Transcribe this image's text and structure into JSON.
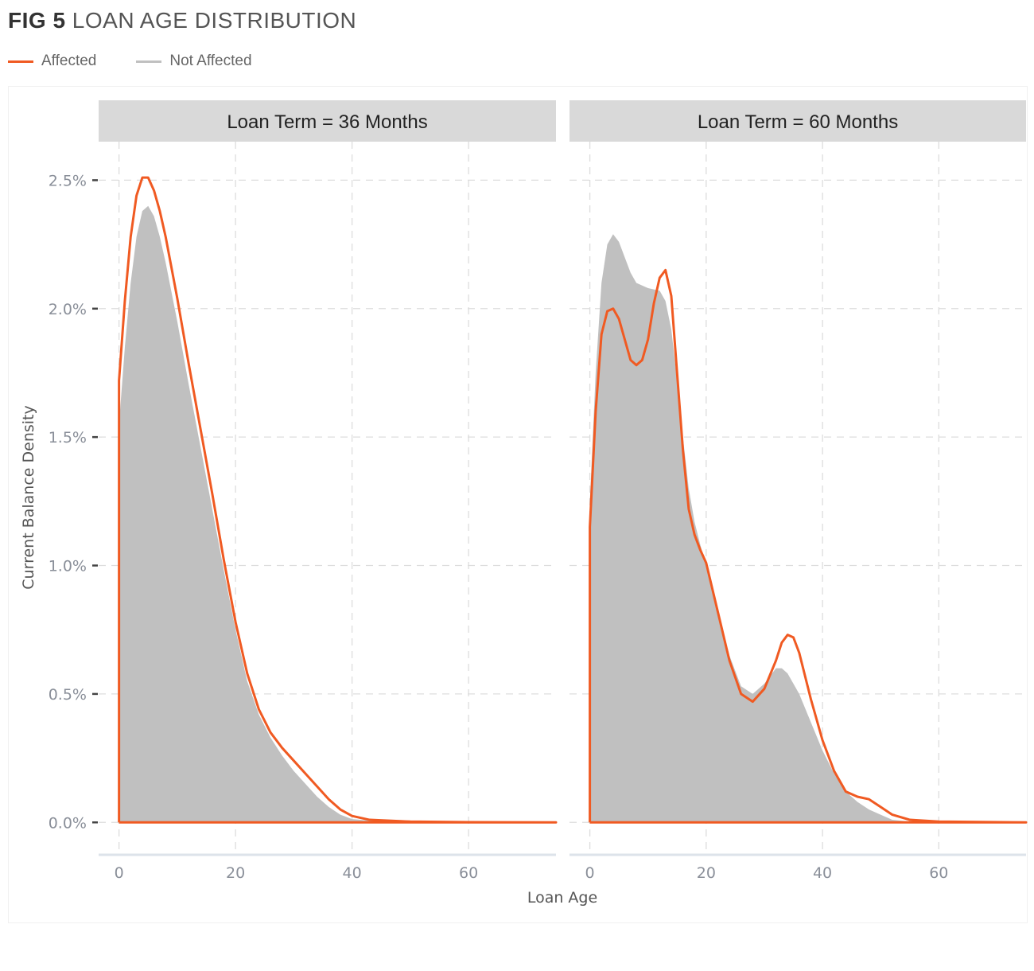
{
  "figure": {
    "label": "FIG 5",
    "title": "LOAN AGE DISTRIBUTION"
  },
  "legend": [
    {
      "name": "Affected",
      "color": "#f05a22"
    },
    {
      "name": "Not Affected",
      "color": "#c0c0c0"
    }
  ],
  "chart_data": {
    "type": "area",
    "xlabel": "Loan Age",
    "ylabel": "Current Balance Density",
    "xlim": [
      -3.5,
      75
    ],
    "ylim": [
      -0.0012,
      0.0265
    ],
    "x_ticks": [
      0,
      20,
      40,
      60
    ],
    "x_tick_labels": [
      "0",
      "20",
      "40",
      "60"
    ],
    "y_ticks": [
      0,
      0.005,
      0.01,
      0.015,
      0.02,
      0.025
    ],
    "y_tick_labels": [
      "0.0%",
      "0.5%",
      "1.0%",
      "1.5%",
      "2.0%",
      "2.5%"
    ],
    "grid": true,
    "legend_position": "top-left",
    "panels": [
      {
        "strip": "Loan Term = 36 Months",
        "series": [
          {
            "name": "Not Affected",
            "style": "filled-area",
            "color": "#c0c0c0",
            "points": [
              [
                0,
                0.0155
              ],
              [
                1,
                0.0185
              ],
              [
                2,
                0.021
              ],
              [
                3,
                0.0228
              ],
              [
                4,
                0.0238
              ],
              [
                5,
                0.024
              ],
              [
                6,
                0.0236
              ],
              [
                7,
                0.0228
              ],
              [
                8,
                0.0218
              ],
              [
                10,
                0.0195
              ],
              [
                12,
                0.017
              ],
              [
                14,
                0.0146
              ],
              [
                16,
                0.0122
              ],
              [
                18,
                0.0098
              ],
              [
                20,
                0.0075
              ],
              [
                22,
                0.0055
              ],
              [
                24,
                0.0042
              ],
              [
                26,
                0.0033
              ],
              [
                28,
                0.0026
              ],
              [
                30,
                0.002
              ],
              [
                32,
                0.0015
              ],
              [
                34,
                0.001
              ],
              [
                36,
                0.0006
              ],
              [
                38,
                0.0003
              ],
              [
                40,
                0.00013
              ],
              [
                45,
                3e-05
              ],
              [
                50,
                1e-05
              ],
              [
                60,
                0
              ],
              [
                75,
                0
              ]
            ]
          },
          {
            "name": "Affected",
            "style": "line",
            "color": "#f05a22",
            "points": [
              [
                0,
                0.0172
              ],
              [
                1,
                0.0203
              ],
              [
                2,
                0.0228
              ],
              [
                3,
                0.0244
              ],
              [
                4,
                0.0251
              ],
              [
                5,
                0.0251
              ],
              [
                6,
                0.0246
              ],
              [
                7,
                0.0238
              ],
              [
                8,
                0.0228
              ],
              [
                10,
                0.0204
              ],
              [
                12,
                0.0178
              ],
              [
                14,
                0.0153
              ],
              [
                16,
                0.0128
              ],
              [
                18,
                0.0102
              ],
              [
                20,
                0.0078
              ],
              [
                22,
                0.0058
              ],
              [
                24,
                0.0044
              ],
              [
                26,
                0.0035
              ],
              [
                28,
                0.0029
              ],
              [
                30,
                0.0024
              ],
              [
                32,
                0.0019
              ],
              [
                34,
                0.0014
              ],
              [
                36,
                0.0009
              ],
              [
                38,
                0.0005
              ],
              [
                40,
                0.00025
              ],
              [
                43,
                0.0001
              ],
              [
                50,
                3e-05
              ],
              [
                60,
                1e-05
              ],
              [
                75,
                0
              ]
            ]
          }
        ]
      },
      {
        "strip": "Loan Term = 60 Months",
        "series": [
          {
            "name": "Not Affected",
            "style": "filled-area",
            "color": "#c0c0c0",
            "points": [
              [
                0,
                0.0125
              ],
              [
                1,
                0.0175
              ],
              [
                2,
                0.021
              ],
              [
                3,
                0.0225
              ],
              [
                4,
                0.0229
              ],
              [
                5,
                0.0226
              ],
              [
                6,
                0.022
              ],
              [
                7,
                0.0214
              ],
              [
                8,
                0.021
              ],
              [
                10,
                0.0208
              ],
              [
                12,
                0.0207
              ],
              [
                13,
                0.0203
              ],
              [
                14,
                0.0192
              ],
              [
                15,
                0.0172
              ],
              [
                16,
                0.015
              ],
              [
                17,
                0.013
              ],
              [
                18,
                0.0117
              ],
              [
                19,
                0.0108
              ],
              [
                20,
                0.01
              ],
              [
                22,
                0.0082
              ],
              [
                24,
                0.0065
              ],
              [
                26,
                0.0053
              ],
              [
                28,
                0.005
              ],
              [
                30,
                0.0054
              ],
              [
                32,
                0.006
              ],
              [
                33,
                0.006
              ],
              [
                34,
                0.0058
              ],
              [
                36,
                0.005
              ],
              [
                38,
                0.0039
              ],
              [
                40,
                0.0028
              ],
              [
                42,
                0.0019
              ],
              [
                44,
                0.0012
              ],
              [
                46,
                0.0008
              ],
              [
                48,
                0.0005
              ],
              [
                50,
                0.0003
              ],
              [
                52,
                0.0001
              ],
              [
                55,
                3e-05
              ],
              [
                60,
                1e-05
              ],
              [
                75,
                0
              ]
            ]
          },
          {
            "name": "Affected",
            "style": "line",
            "color": "#f05a22",
            "points": [
              [
                0,
                0.0115
              ],
              [
                1,
                0.016
              ],
              [
                2,
                0.019
              ],
              [
                3,
                0.0199
              ],
              [
                4,
                0.02
              ],
              [
                5,
                0.0196
              ],
              [
                6,
                0.0188
              ],
              [
                7,
                0.018
              ],
              [
                8,
                0.0178
              ],
              [
                9,
                0.018
              ],
              [
                10,
                0.0188
              ],
              [
                11,
                0.0202
              ],
              [
                12,
                0.0212
              ],
              [
                13,
                0.0215
              ],
              [
                14,
                0.0205
              ],
              [
                15,
                0.0175
              ],
              [
                16,
                0.0145
              ],
              [
                17,
                0.0122
              ],
              [
                18,
                0.0112
              ],
              [
                19,
                0.0106
              ],
              [
                20,
                0.0101
              ],
              [
                22,
                0.0082
              ],
              [
                24,
                0.0063
              ],
              [
                26,
                0.005
              ],
              [
                28,
                0.0047
              ],
              [
                30,
                0.0052
              ],
              [
                32,
                0.0063
              ],
              [
                33,
                0.007
              ],
              [
                34,
                0.0073
              ],
              [
                35,
                0.0072
              ],
              [
                36,
                0.0066
              ],
              [
                38,
                0.0048
              ],
              [
                40,
                0.0032
              ],
              [
                42,
                0.002
              ],
              [
                44,
                0.0012
              ],
              [
                46,
                0.001
              ],
              [
                48,
                0.0009
              ],
              [
                50,
                0.0006
              ],
              [
                52,
                0.0003
              ],
              [
                55,
                0.0001
              ],
              [
                60,
                3e-05
              ],
              [
                75,
                0
              ]
            ]
          }
        ]
      }
    ]
  }
}
